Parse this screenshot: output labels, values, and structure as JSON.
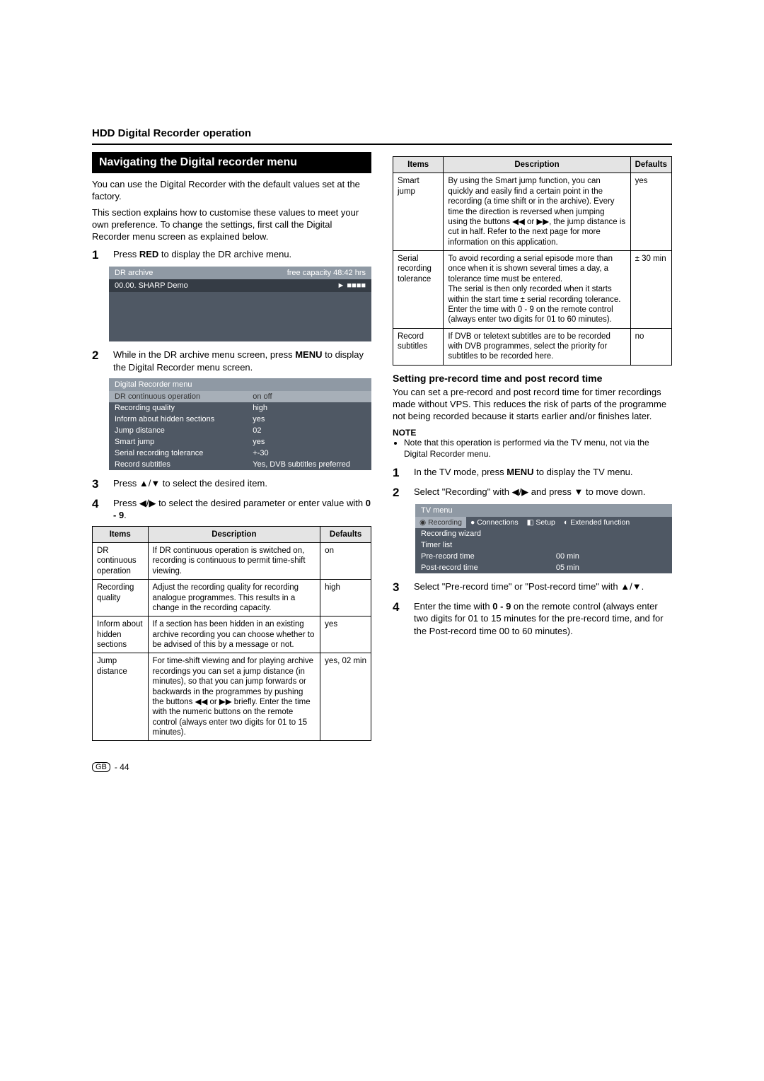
{
  "header": {
    "title": "HDD Digital Recorder operation"
  },
  "left": {
    "band": "Navigating the Digital recorder menu",
    "intro1": "You can use the Digital Recorder with the default values set at the factory.",
    "intro2": "This section explains how to customise these values to meet your own preference. To change the settings, first call the Digital Recorder menu screen as explained below.",
    "step1": "Press RED to display the DR archive menu.",
    "archive_header_left": "DR archive",
    "archive_header_right": "free capacity 48:42 hrs",
    "archive_row_left": "00.00. SHARP Demo",
    "archive_row_right": "► ■■■■",
    "step2": "While in the DR archive menu screen, press MENU to display the Digital Recorder menu screen.",
    "menu_title": "Digital Recorder menu",
    "menu_rows": [
      {
        "label": "DR continuous operation",
        "val": "on   off",
        "sel": true
      },
      {
        "label": "Recording quality",
        "val": "high"
      },
      {
        "label": "Inform about hidden sections",
        "val": "yes"
      },
      {
        "label": "Jump distance",
        "val": "02"
      },
      {
        "label": "Smart jump",
        "val": "yes"
      },
      {
        "label": "Serial recording tolerance",
        "val": "+-30"
      },
      {
        "label": "Record subtitles",
        "val": "Yes, DVB subtitles preferred"
      }
    ],
    "step3": "Press ▲/▼ to select the desired item.",
    "step4": "Press ◀/▶ to select the desired parameter or enter value with 0 - 9.",
    "table1_head": {
      "c1": "Items",
      "c2": "Description",
      "c3": "Defaults"
    },
    "table1": [
      {
        "item": "DR continuous operation",
        "desc": "If DR continuous operation is switched on, recording is continuous to permit time-shift viewing.",
        "def": "on"
      },
      {
        "item": "Recording quality",
        "desc": "Adjust the recording quality for recording analogue programmes. This results in a change in the recording capacity.",
        "def": "high"
      },
      {
        "item": "Inform about hidden sections",
        "desc": "If a section has been hidden in an existing archive recording you can choose whether to be advised of this by a message or not.",
        "def": "yes"
      },
      {
        "item": "Jump distance",
        "desc": "For time-shift viewing and for playing archive recordings you can set a jump distance (in minutes), so that you can jump forwards or backwards in the programmes by pushing the buttons ◀◀ or ▶▶ briefly. Enter the time with the numeric buttons on the remote control (always enter two digits for 01 to 15 minutes).",
        "def": "yes, 02 min"
      }
    ]
  },
  "right": {
    "table2_head": {
      "c1": "Items",
      "c2": "Description",
      "c3": "Defaults"
    },
    "table2": [
      {
        "item": "Smart jump",
        "desc": "By using the Smart jump function, you can quickly and easily find a certain point in the recording (a time shift or in the archive). Every time the direction is reversed when jumping using the buttons ◀◀ or ▶▶, the jump distance is cut in half. Refer to the next page for more information on this application.",
        "def": "yes"
      },
      {
        "item": "Serial recording tolerance",
        "desc": "To avoid recording a serial episode more than once when it is shown several times a day, a tolerance time must be entered.\nThe serial is then only recorded when it starts within the start time ± serial recording tolerance. Enter the time with 0 - 9 on the remote control (always enter two digits for 01 to 60 minutes).",
        "def": "± 30 min"
      },
      {
        "item": "Record subtitles",
        "desc": "If DVB or teletext subtitles are to be recorded with DVB programmes, select the priority for subtitles to be recorded here.",
        "def": "no"
      }
    ],
    "subhead": "Setting pre-record time and post record time",
    "para": "You can set a pre-record and post record time for timer recordings made without VPS. This reduces the risk of parts of the programme not being recorded because it starts earlier and/or finishes later.",
    "note_label": "NOTE",
    "note1": "Note that this operation is performed via the TV menu, not via the Digital Recorder menu.",
    "rstep1": "In the TV mode, press MENU to display the TV menu.",
    "rstep2": "Select \"Recording\" with ◀/▶ and press ▼ to move down.",
    "tv_title": "TV menu",
    "tv_tabs": [
      {
        "label": "Recording",
        "active": true,
        "icon": "◉"
      },
      {
        "label": "Connections",
        "icon": "●"
      },
      {
        "label": "Setup",
        "icon": "◧"
      },
      {
        "label": "Extended function",
        "icon": "◐"
      }
    ],
    "tv_rows": [
      {
        "label": "Recording wizard",
        "val": ""
      },
      {
        "label": "Timer list",
        "val": ""
      },
      {
        "label": "Pre-record time",
        "val": "00 min"
      },
      {
        "label": "Post-record time",
        "val": "05 min"
      }
    ],
    "rstep3": "Select \"Pre-record time\" or \"Post-record time\" with ▲/▼.",
    "rstep4": "Enter the time with 0 - 9 on the remote control (always enter two digits for 01 to 15 minutes for the pre-record time, and for the Post-record time 00 to 60 minutes)."
  },
  "footer": {
    "region": "GB",
    "page": "- 44"
  }
}
